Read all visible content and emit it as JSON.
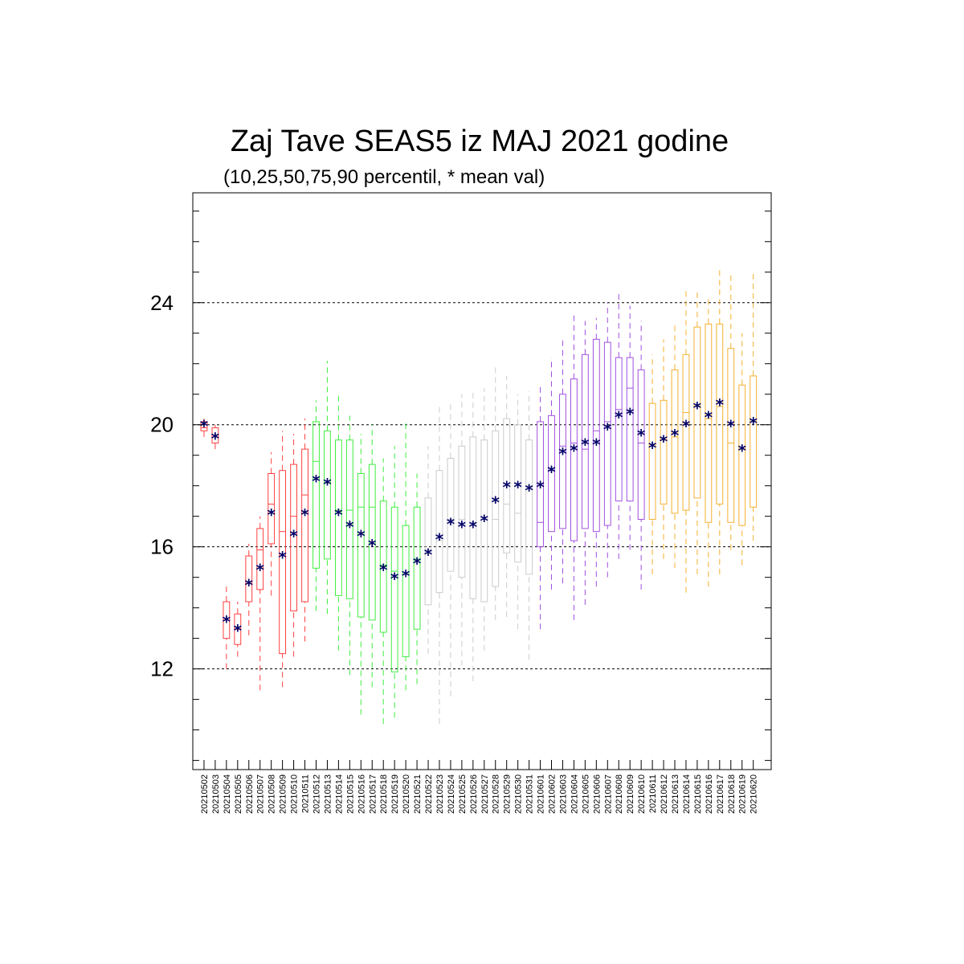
{
  "chart_data": {
    "type": "boxplot",
    "title": "Zaj Tave SEAS5 iz MAJ 2021 godine",
    "subtitle": "(10,25,50,75,90 percentil, * mean val)",
    "ylim": [
      8.7,
      27.6
    ],
    "yticks": [
      12,
      16,
      20,
      24
    ],
    "grid": "dashed horizontal at major y ticks",
    "colors": {
      "mean_marker": "#000066",
      "frame": "#000000"
    },
    "dates": [
      "20210502",
      "20210503",
      "20210504",
      "20210505",
      "20210506",
      "20210507",
      "20210508",
      "20210509",
      "20210510",
      "20210511",
      "20210512",
      "20210513",
      "20210514",
      "20210515",
      "20210516",
      "20210517",
      "20210518",
      "20210519",
      "20210520",
      "20210521",
      "20210522",
      "20210523",
      "20210524",
      "20210525",
      "20210526",
      "20210527",
      "20210528",
      "20210529",
      "20210530",
      "20210531",
      "20210601",
      "20210602",
      "20210603",
      "20210604",
      "20210605",
      "20210606",
      "20210607",
      "20210608",
      "20210609",
      "20210610",
      "20210611",
      "20210612",
      "20210613",
      "20210614",
      "20210615",
      "20210616",
      "20210617",
      "20210618",
      "20210619",
      "20210620"
    ],
    "box_colors": [
      "#ff4040",
      "#ff4040",
      "#ff4040",
      "#ff4040",
      "#ff4040",
      "#ff4040",
      "#ff4040",
      "#ff4040",
      "#ff4040",
      "#ff4040",
      "#40ee40",
      "#40ee40",
      "#40ee40",
      "#40ee40",
      "#40ee40",
      "#40ee40",
      "#40ee40",
      "#40ee40",
      "#40ee40",
      "#40ee40",
      "#cccccc",
      "#cccccc",
      "#cccccc",
      "#cccccc",
      "#cccccc",
      "#cccccc",
      "#cccccc",
      "#cccccc",
      "#cccccc",
      "#cccccc",
      "#a050e0",
      "#a050e0",
      "#a050e0",
      "#a050e0",
      "#a050e0",
      "#a050e0",
      "#a050e0",
      "#a050e0",
      "#a050e0",
      "#a050e0",
      "#f5b030",
      "#f5b030",
      "#f5b030",
      "#f5b030",
      "#f5b030",
      "#f5b030",
      "#f5b030",
      "#f5b030",
      "#f5b030",
      "#f5b030"
    ],
    "p10": [
      19.6,
      19.2,
      12.0,
      12.4,
      13.1,
      11.3,
      14.4,
      11.4,
      12.4,
      12.9,
      13.9,
      13.8,
      12.6,
      11.8,
      10.5,
      11.4,
      10.2,
      10.4,
      11.3,
      11.5,
      12.5,
      10.2,
      11.1,
      12.1,
      11.6,
      12.6,
      13.6,
      13.7,
      13.3,
      12.3,
      13.3,
      14.6,
      14.8,
      13.6,
      14.1,
      14.7,
      15.0,
      15.6,
      15.9,
      14.6,
      15.1,
      15.6,
      15.3,
      14.5,
      15.1,
      14.7,
      15.1,
      15.9,
      15.4,
      16.2
    ],
    "p25": [
      19.8,
      19.4,
      13.0,
      12.8,
      14.2,
      14.6,
      16.1,
      12.5,
      13.9,
      14.2,
      15.3,
      15.6,
      14.4,
      14.3,
      13.7,
      13.6,
      13.2,
      11.9,
      12.4,
      13.3,
      14.1,
      14.5,
      15.2,
      15.0,
      14.3,
      14.2,
      14.7,
      15.8,
      15.5,
      15.1,
      16.0,
      16.5,
      16.6,
      16.2,
      16.6,
      16.5,
      16.7,
      17.5,
      17.5,
      16.9,
      16.9,
      17.4,
      17.1,
      17.2,
      17.6,
      16.8,
      17.4,
      16.8,
      16.7,
      17.3
    ],
    "p50": [
      19.9,
      19.6,
      13.6,
      13.3,
      14.8,
      15.9,
      17.4,
      16.5,
      17.0,
      17.7,
      18.8,
      18.1,
      17.2,
      17.2,
      17.3,
      17.3,
      15.4,
      15.2,
      15.1,
      15.6,
      15.9,
      16.2,
      16.9,
      16.9,
      16.8,
      16.9,
      16.9,
      17.4,
      17.1,
      18.0,
      16.8,
      18.5,
      19.3,
      19.4,
      19.2,
      19.8,
      20.1,
      20.5,
      21.2,
      19.4,
      19.3,
      19.5,
      19.6,
      20.4,
      20.6,
      20.2,
      20.6,
      19.4,
      19.2,
      20.1
    ],
    "p75": [
      20.1,
      19.9,
      14.2,
      13.8,
      15.7,
      16.6,
      18.4,
      18.5,
      18.7,
      19.2,
      20.1,
      19.8,
      19.5,
      19.5,
      18.4,
      18.7,
      17.5,
      17.3,
      16.7,
      17.3,
      17.6,
      18.5,
      18.9,
      19.3,
      19.6,
      19.5,
      19.8,
      20.2,
      20.0,
      19.5,
      20.1,
      20.3,
      21.0,
      21.5,
      22.3,
      22.8,
      22.7,
      22.2,
      22.2,
      21.8,
      20.7,
      20.8,
      21.8,
      22.3,
      23.2,
      23.3,
      23.3,
      22.5,
      21.3,
      21.6
    ],
    "p90": [
      20.2,
      20.0,
      14.7,
      14.2,
      16.1,
      17.0,
      19.1,
      19.8,
      19.7,
      20.2,
      20.8,
      22.1,
      21.0,
      20.3,
      19.7,
      20.0,
      18.9,
      19.3,
      20.1,
      18.4,
      19.3,
      20.6,
      20.8,
      21.0,
      21.1,
      21.2,
      21.9,
      21.6,
      21.0,
      21.1,
      21.3,
      22.2,
      22.8,
      23.6,
      23.4,
      23.5,
      24.0,
      24.3,
      23.9,
      23.4,
      22.3,
      22.8,
      23.3,
      24.4,
      24.4,
      24.2,
      25.2,
      25.0,
      23.0,
      25.0
    ],
    "mean": [
      20.0,
      19.6,
      13.6,
      13.3,
      14.8,
      15.3,
      17.1,
      15.7,
      16.4,
      17.1,
      18.2,
      18.1,
      17.1,
      16.7,
      16.4,
      16.1,
      15.3,
      15.0,
      15.1,
      15.5,
      15.8,
      16.3,
      16.8,
      16.7,
      16.7,
      16.9,
      17.5,
      18.0,
      18.0,
      17.9,
      18.0,
      18.5,
      19.1,
      19.2,
      19.4,
      19.4,
      19.9,
      20.3,
      20.4,
      19.7,
      19.3,
      19.5,
      19.7,
      20.0,
      20.6,
      20.3,
      20.7,
      20.0,
      19.2,
      20.1
    ]
  }
}
